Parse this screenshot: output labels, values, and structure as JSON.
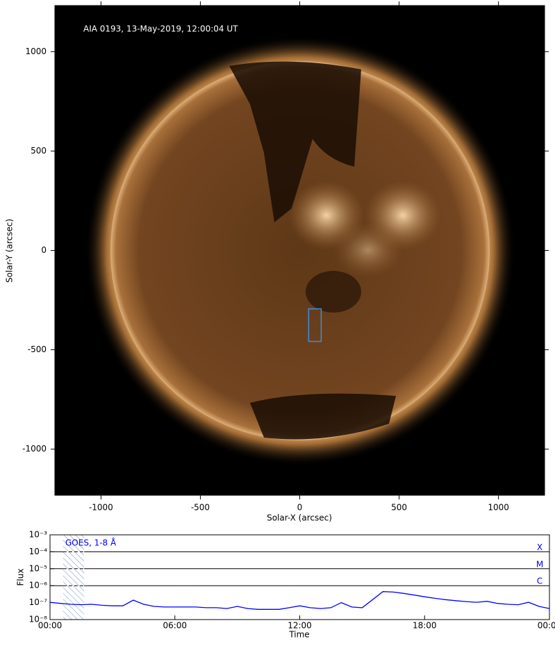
{
  "chart_data": [
    {
      "type": "image",
      "annotation": "AIA 0193, 13-May-2019, 12:00:04 UT",
      "xlabel": "Solar-X (arcsec)",
      "ylabel": "Solar-Y (arcsec)",
      "xlim": [
        -1232,
        1232
      ],
      "ylim": [
        -1232,
        1232
      ],
      "xticks": [
        -1000,
        -500,
        0,
        500,
        1000
      ],
      "yticks": [
        -1000,
        -500,
        0,
        500,
        1000
      ],
      "box": {
        "x": [
          45,
          108
        ],
        "y": [
          -458,
          -294
        ],
        "color": "#3d8fe0"
      }
    },
    {
      "type": "line",
      "xlabel": "Time",
      "ylabel": "Flux",
      "xlim": [
        0,
        24
      ],
      "ylim": [
        1e-08,
        0.001
      ],
      "log_y": true,
      "xticks": [
        {
          "value": 0,
          "label": "00:00"
        },
        {
          "value": 6,
          "label": "06:00"
        },
        {
          "value": 12,
          "label": "12:00"
        },
        {
          "value": 18,
          "label": "18:00"
        },
        {
          "value": 24,
          "label": "00:00"
        }
      ],
      "yticks": [
        {
          "value": 1e-08,
          "label": "10⁻⁸"
        },
        {
          "value": 1e-07,
          "label": "10⁻⁷"
        },
        {
          "value": 1e-06,
          "label": "10⁻⁶"
        },
        {
          "value": 1e-05,
          "label": "10⁻⁵"
        },
        {
          "value": 0.0001,
          "label": "10⁻⁴"
        },
        {
          "value": 0.001,
          "label": "10⁻³"
        }
      ],
      "levels": [
        {
          "value": 0.0001,
          "label": "X"
        },
        {
          "value": 1e-05,
          "label": "M"
        },
        {
          "value": 1e-06,
          "label": "C"
        }
      ],
      "highlight_x": [
        0.63,
        1.64
      ],
      "series": [
        {
          "name": "GOES, 1-8 Å",
          "color": "#0000ff",
          "x": [
            0,
            0.5,
            1,
            1.5,
            2,
            2.5,
            3,
            3.5,
            4,
            4.5,
            5,
            5.5,
            6,
            6.5,
            7,
            7.5,
            8,
            8.5,
            9,
            9.5,
            10,
            10.5,
            11,
            11.5,
            12,
            12.5,
            13,
            13.5,
            14,
            14.5,
            15,
            15.5,
            16,
            16.5,
            17,
            17.5,
            18,
            18.5,
            19,
            19.5,
            20,
            20.5,
            21,
            21.5,
            22,
            22.5,
            23,
            23.5,
            24
          ],
          "values": [
            1.05e-07,
            9e-08,
            8e-08,
            7.5e-08,
            8e-08,
            7e-08,
            6.5e-08,
            6.5e-08,
            1.4e-07,
            8e-08,
            6e-08,
            5.5e-08,
            5.5e-08,
            5.5e-08,
            5.5e-08,
            5e-08,
            5e-08,
            4.5e-08,
            6e-08,
            4.5e-08,
            4e-08,
            4e-08,
            4e-08,
            5e-08,
            6.5e-08,
            5e-08,
            4.5e-08,
            5e-08,
            1e-07,
            5.5e-08,
            5e-08,
            1.5e-07,
            4.5e-07,
            4.2e-07,
            3.5e-07,
            2.8e-07,
            2.2e-07,
            1.8e-07,
            1.5e-07,
            1.3e-07,
            1.15e-07,
            1.05e-07,
            1.2e-07,
            9e-08,
            8e-08,
            7.5e-08,
            1.05e-07,
            6e-08,
            4.5e-08
          ]
        }
      ]
    }
  ]
}
